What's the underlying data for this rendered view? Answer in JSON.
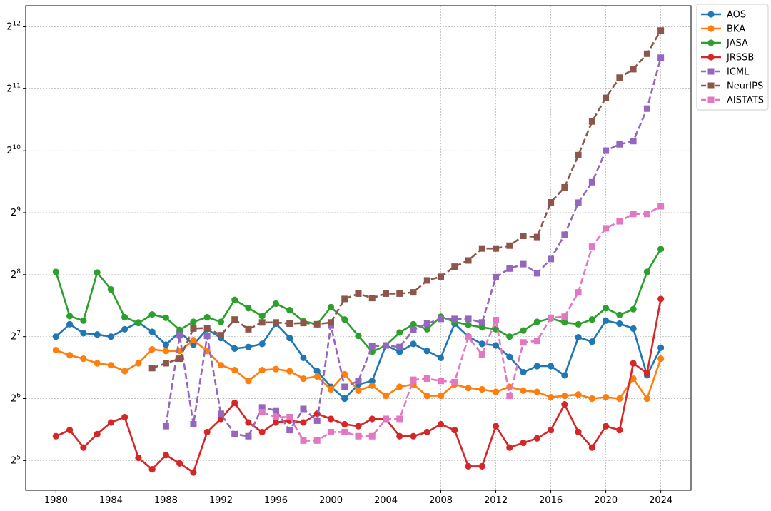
{
  "chart_data": {
    "type": "line",
    "title": "",
    "xlabel": "",
    "ylabel": "",
    "xlim": [
      1977.8,
      2026.2
    ],
    "ylim_log2": [
      4.52,
      12.34
    ],
    "y_scale": "log2",
    "grid": true,
    "legend_position": "outside-top-right",
    "x_ticks": [
      1980,
      1984,
      1988,
      1992,
      1996,
      2000,
      2004,
      2008,
      2012,
      2016,
      2020,
      2024
    ],
    "x_tick_labels": [
      "1980",
      "1984",
      "1988",
      "1992",
      "1996",
      "2000",
      "2004",
      "2008",
      "2012",
      "2016",
      "2020",
      "2024"
    ],
    "y_ticks": [
      5,
      6,
      7,
      8,
      9,
      10,
      11,
      12
    ],
    "y_tick_base": "2",
    "series": [
      {
        "name": "AOS",
        "color": "#1f77b4",
        "linestyle": "solid",
        "marker": "circle",
        "x": [
          1980,
          1981,
          1982,
          1983,
          1984,
          1985,
          1986,
          1987,
          1988,
          1989,
          1990,
          1991,
          1992,
          1993,
          1994,
          1995,
          1996,
          1997,
          1998,
          1999,
          2000,
          2001,
          2002,
          2003,
          2004,
          2005,
          2006,
          2007,
          2008,
          2009,
          2010,
          2011,
          2012,
          2013,
          2014,
          2015,
          2016,
          2017,
          2018,
          2019,
          2020,
          2021,
          2022,
          2023,
          2024
        ],
        "values": [
          128,
          147,
          133,
          131,
          128,
          139,
          150,
          135,
          117,
          135,
          117,
          139,
          126,
          112,
          114,
          118,
          148,
          126,
          101,
          87,
          73,
          64,
          75,
          78,
          116,
          108,
          118,
          109,
          101,
          148,
          128,
          118,
          116,
          102,
          86,
          92,
          92,
          83,
          127,
          121,
          153,
          148,
          140,
          83,
          113
        ]
      },
      {
        "name": "BKA",
        "color": "#ff7f0e",
        "linestyle": "solid",
        "marker": "circle",
        "x": [
          1980,
          1981,
          1982,
          1983,
          1984,
          1985,
          1986,
          1987,
          1988,
          1989,
          1990,
          1991,
          1992,
          1993,
          1994,
          1995,
          1996,
          1997,
          1998,
          1999,
          2000,
          2001,
          2002,
          2003,
          2004,
          2005,
          2006,
          2007,
          2008,
          2009,
          2010,
          2011,
          2012,
          2013,
          2014,
          2015,
          2016,
          2017,
          2018,
          2019,
          2020,
          2021,
          2022,
          2023,
          2024
        ],
        "values": [
          110,
          104,
          100,
          95,
          93,
          87,
          95,
          111,
          109,
          109,
          123,
          109,
          93,
          88,
          78,
          88,
          89,
          87,
          80,
          82,
          71,
          84,
          70,
          74,
          66,
          73,
          75,
          66,
          66,
          75,
          72,
          71,
          69,
          73,
          70,
          69,
          65,
          66,
          67,
          64,
          65,
          64,
          80,
          64,
          100
        ]
      },
      {
        "name": "JASA",
        "color": "#2ca02c",
        "linestyle": "solid",
        "marker": "circle",
        "x": [
          1980,
          1981,
          1982,
          1983,
          1984,
          1985,
          1986,
          1987,
          1988,
          1989,
          1990,
          1991,
          1992,
          1993,
          1994,
          1995,
          1996,
          1997,
          1998,
          1999,
          2000,
          2001,
          2002,
          2003,
          2004,
          2005,
          2006,
          2007,
          2008,
          2009,
          2010,
          2011,
          2012,
          2013,
          2014,
          2015,
          2016,
          2017,
          2018,
          2019,
          2020,
          2021,
          2022,
          2023,
          2024
        ],
        "values": [
          264,
          161,
          153,
          262,
          217,
          159,
          149,
          164,
          158,
          138,
          151,
          159,
          151,
          193,
          176,
          161,
          185,
          172,
          152,
          147,
          178,
          155,
          129,
          108,
          116,
          134,
          147,
          139,
          160,
          151,
          146,
          142,
          139,
          128,
          137,
          151,
          157,
          150,
          147,
          155,
          176,
          163,
          174,
          264,
          341
        ]
      },
      {
        "name": "JRSSB",
        "color": "#d62728",
        "linestyle": "solid",
        "marker": "circle",
        "x": [
          1980,
          1981,
          1982,
          1983,
          1984,
          1985,
          1986,
          1987,
          1988,
          1989,
          1990,
          1991,
          1992,
          1993,
          1994,
          1995,
          1996,
          1997,
          1998,
          1999,
          2000,
          2001,
          2002,
          2003,
          2004,
          2005,
          2006,
          2007,
          2008,
          2009,
          2010,
          2011,
          2012,
          2013,
          2014,
          2015,
          2016,
          2017,
          2018,
          2019,
          2020,
          2021,
          2022,
          2023,
          2024
        ],
        "values": [
          42,
          45,
          37,
          43,
          49,
          52,
          33,
          29,
          34,
          31,
          28,
          44,
          51,
          61,
          49,
          44,
          49,
          50,
          49,
          54,
          51,
          48,
          47,
          51,
          51,
          42,
          42,
          44,
          48,
          45,
          30,
          30,
          47,
          37,
          39,
          41,
          45,
          60,
          44,
          37,
          47,
          45,
          95,
          85,
          195
        ]
      },
      {
        "name": "ICML",
        "color": "#9467bd",
        "linestyle": "dashed",
        "marker": "square",
        "x": [
          1988,
          1989,
          1990,
          1991,
          1992,
          1993,
          1994,
          1995,
          1996,
          1997,
          1998,
          1999,
          2000,
          2001,
          2002,
          2003,
          2004,
          2005,
          2006,
          2007,
          2008,
          2009,
          2010,
          2011,
          2012,
          2013,
          2014,
          2015,
          2016,
          2017,
          2018,
          2019,
          2020,
          2021,
          2022,
          2023,
          2024
        ],
        "values": [
          47,
          130,
          48,
          129,
          54,
          43,
          42,
          58,
          56,
          45,
          57,
          50,
          145,
          73,
          78,
          115,
          116,
          114,
          138,
          148,
          156,
          156,
          156,
          150,
          249,
          274,
          288,
          260,
          305,
          400,
          573,
          720,
          1025,
          1100,
          1140,
          1640,
          2900
        ]
      },
      {
        "name": "NeurIPS",
        "color": "#8c564b",
        "linestyle": "dashed",
        "marker": "square",
        "x": [
          1987,
          1988,
          1989,
          1990,
          1991,
          1992,
          1993,
          1994,
          1995,
          1996,
          1997,
          1998,
          1999,
          2000,
          2001,
          2002,
          2003,
          2004,
          2005,
          2006,
          2007,
          2008,
          2009,
          2010,
          2011,
          2012,
          2013,
          2014,
          2015,
          2016,
          2017,
          2018,
          2019,
          2020,
          2021,
          2022,
          2023,
          2024
        ],
        "values": [
          90,
          95,
          100,
          140,
          141,
          130,
          155,
          139,
          150,
          150,
          148,
          149,
          147,
          150,
          195,
          207,
          197,
          207,
          207,
          210,
          240,
          250,
          280,
          300,
          343,
          343,
          354,
          395,
          390,
          575,
          680,
          975,
          1420,
          1850,
          2320,
          2550,
          3030,
          3930
        ]
      },
      {
        "name": "AISTATS",
        "color": "#e377c2",
        "linestyle": "dashed",
        "marker": "square",
        "x": [
          1995,
          1996,
          1997,
          1998,
          1999,
          2000,
          2001,
          2002,
          2003,
          2004,
          2005,
          2006,
          2007,
          2008,
          2009,
          2010,
          2011,
          2012,
          2013,
          2014,
          2015,
          2016,
          2017,
          2018,
          2019,
          2020,
          2021,
          2022,
          2023,
          2024
        ],
        "values": [
          55,
          52,
          52,
          40,
          40,
          44,
          44,
          42,
          42,
          51,
          51,
          79,
          80,
          78,
          77,
          127,
          105,
          154,
          66,
          120,
          122,
          158,
          160,
          210,
          350,
          430,
          465,
          505,
          505,
          550
        ]
      }
    ]
  }
}
